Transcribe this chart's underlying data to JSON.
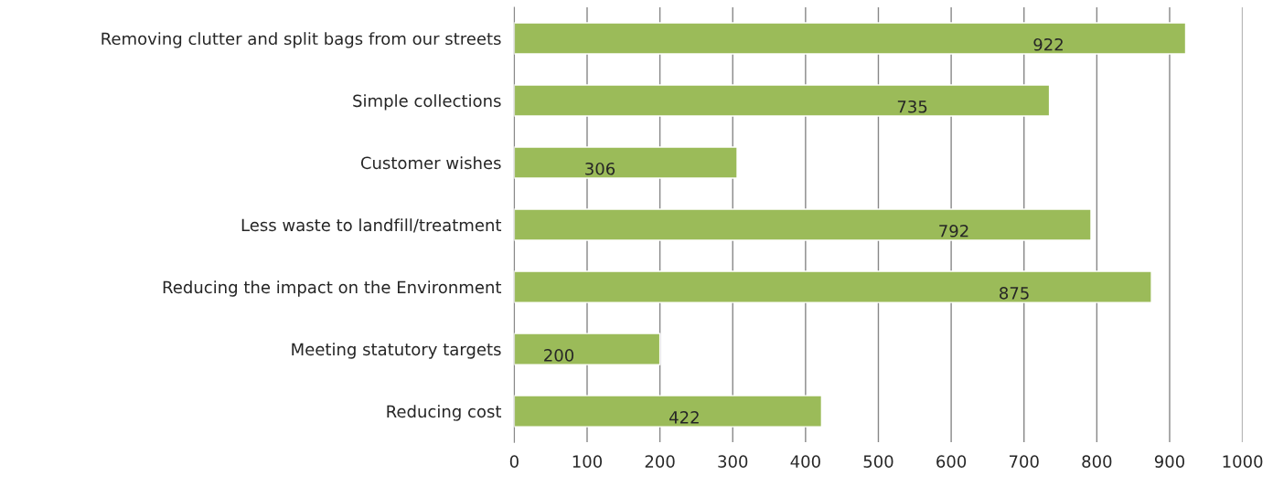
{
  "chart_data": {
    "type": "bar",
    "orientation": "horizontal",
    "categories": [
      "Removing clutter and split bags from our streets",
      "Simple collections",
      "Customer wishes",
      "Less waste to landfill/treatment",
      "Reducing the impact on the Environment",
      "Meeting statutory targets",
      "Reducing cost"
    ],
    "values": [
      922,
      735,
      306,
      792,
      875,
      200,
      422
    ],
    "color": "#9bbb59",
    "xlim": [
      0,
      1000
    ],
    "xticks": [
      0,
      100,
      200,
      300,
      400,
      500,
      600,
      700,
      800,
      900,
      1000
    ],
    "grid": "x",
    "data_labels": true
  }
}
